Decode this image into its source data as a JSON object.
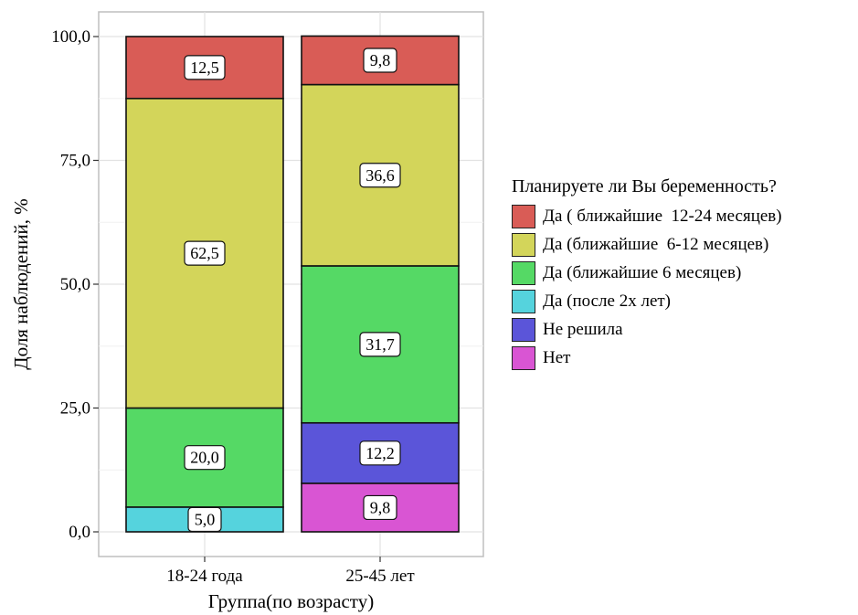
{
  "chart_data": {
    "type": "bar",
    "stacked": true,
    "categories": [
      "18-24 года",
      "25-45 лет"
    ],
    "xlabel": "Группа(по возрасту)",
    "ylabel": "Доля наблюдений, %",
    "ylim": [
      0,
      100
    ],
    "yticks": [
      0,
      25,
      50,
      75,
      100
    ],
    "ytick_labels": [
      "0,0",
      "25,0",
      "50,0",
      "75,0",
      "100,0"
    ],
    "grid": true,
    "legend": {
      "title": "Планируете ли Вы беременность?",
      "position": "right"
    },
    "series": [
      {
        "name": "Да ( ближайшие  12-24 месяцев)",
        "color": "#d95c56",
        "values": [
          12.5,
          9.8
        ],
        "labels": [
          "12,5",
          "9,8"
        ]
      },
      {
        "name": "Да (ближайшие  6-12 месяцев)",
        "color": "#d3d55a",
        "values": [
          62.5,
          36.6
        ],
        "labels": [
          "62,5",
          "36,6"
        ]
      },
      {
        "name": "Да (ближайшие 6 месяцев)",
        "color": "#55d965",
        "values": [
          20.0,
          31.7
        ],
        "labels": [
          "20,0",
          "31,7"
        ]
      },
      {
        "name": "Да (после 2х лет)",
        "color": "#55d3dd",
        "values": [
          5.0,
          0
        ],
        "labels": [
          "5,0",
          ""
        ]
      },
      {
        "name": "Не решила",
        "color": "#5b55d9",
        "values": [
          0,
          12.2
        ],
        "labels": [
          "",
          "12,2"
        ]
      },
      {
        "name": "Нет",
        "color": "#d955d3",
        "values": [
          0,
          9.8
        ],
        "labels": [
          "",
          "9,8"
        ]
      }
    ]
  }
}
